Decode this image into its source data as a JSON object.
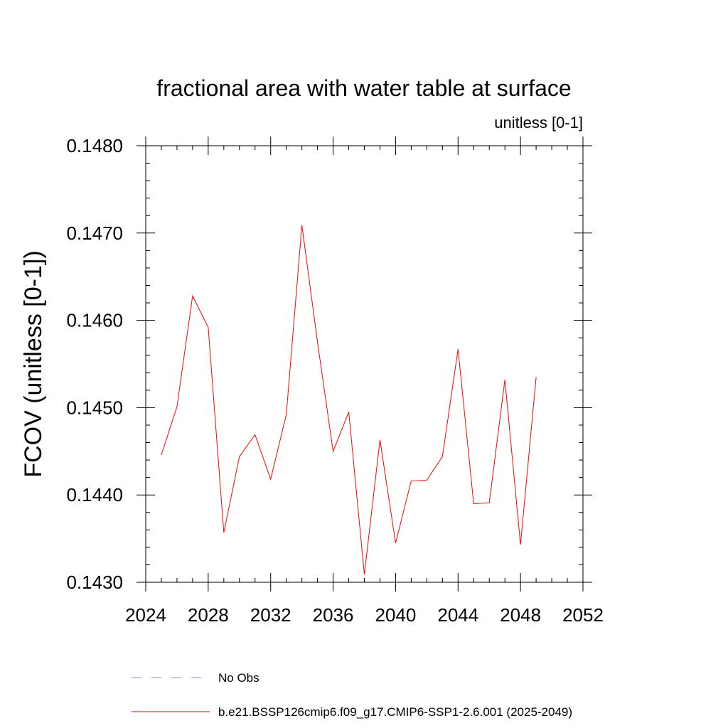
{
  "chart_data": {
    "type": "line",
    "title": "fractional area with water table at surface",
    "units_label": "unitless [0-1]",
    "ylabel": "FCOV  (unitless [0-1])",
    "xlabel": "",
    "xlim": [
      2024,
      2052
    ],
    "ylim": [
      0.143,
      0.148
    ],
    "x_ticks": [
      2024,
      2028,
      2032,
      2036,
      2040,
      2044,
      2048,
      2052
    ],
    "x_tick_labels": [
      "2024",
      "2028",
      "2032",
      "2036",
      "2040",
      "2044",
      "2048",
      "2052"
    ],
    "y_ticks": [
      0.143,
      0.144,
      0.145,
      0.146,
      0.147,
      0.148
    ],
    "y_tick_labels": [
      "0.1430",
      "0.1440",
      "0.1450",
      "0.1460",
      "0.1470",
      "0.1480"
    ],
    "grid": false,
    "legend_position": "bottom",
    "series": [
      {
        "name": "b.e21.BSSP126cmip6.f09_g17.CMIP6-SSP1-2.6.001 (2025-2049)",
        "color": "#ff0000",
        "style": "solid",
        "x": [
          2025,
          2026,
          2027,
          2028,
          2029,
          2030,
          2031,
          2032,
          2033,
          2034,
          2035,
          2036,
          2037,
          2038,
          2039,
          2040,
          2041,
          2042,
          2043,
          2044,
          2045,
          2046,
          2047,
          2048,
          2049
        ],
        "values": [
          0.14446,
          0.14501,
          0.14628,
          0.14592,
          0.14357,
          0.14444,
          0.14469,
          0.14418,
          0.14492,
          0.14709,
          0.14575,
          0.1445,
          0.14495,
          0.14309,
          0.14463,
          0.14345,
          0.14416,
          0.14417,
          0.14444,
          0.14567,
          0.1439,
          0.14391,
          0.14532,
          0.14343,
          0.14535
        ]
      }
    ],
    "legend_extra": [
      {
        "name": "No Obs",
        "color": "#8888cc",
        "style": "dashed"
      }
    ]
  }
}
